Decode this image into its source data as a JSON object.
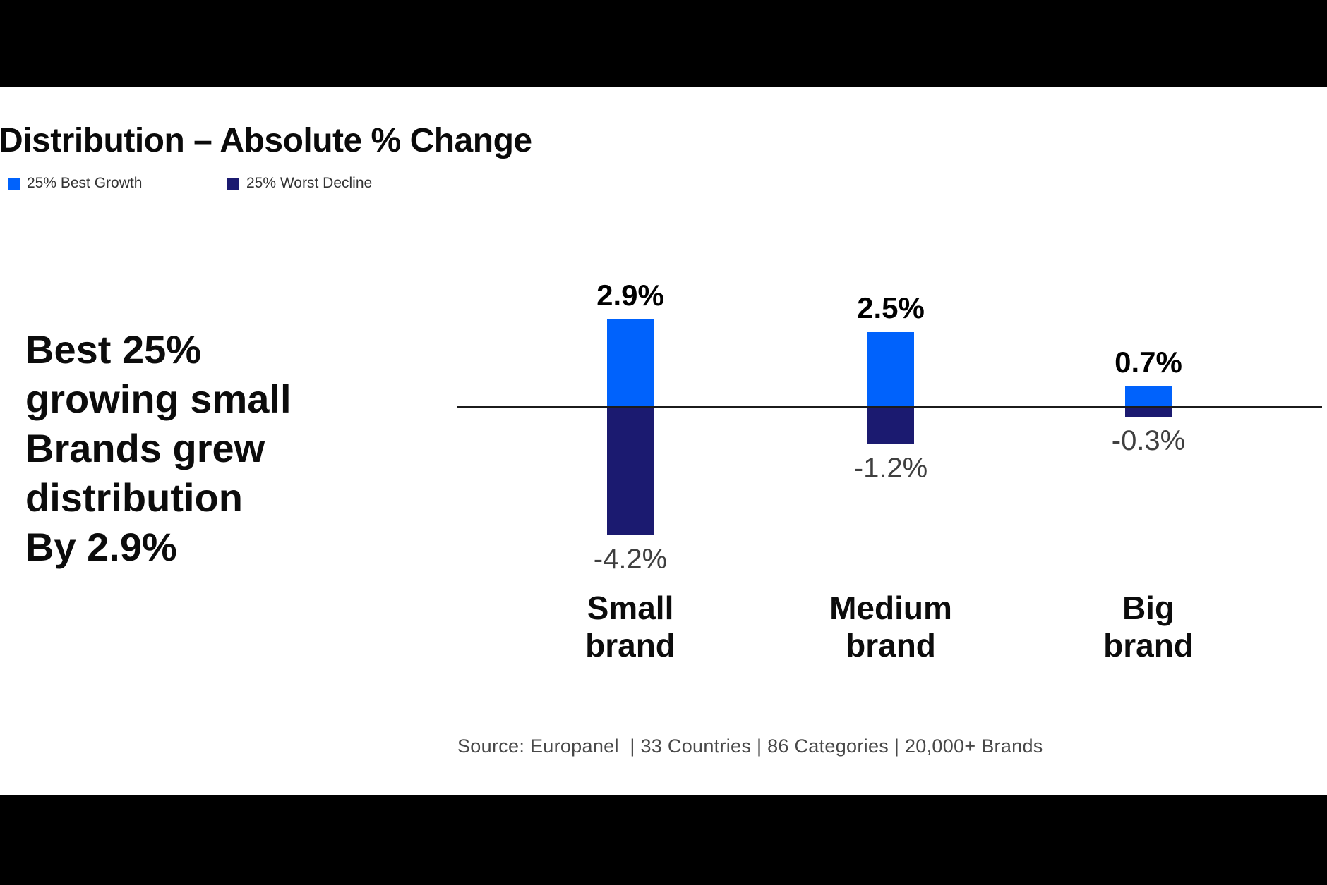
{
  "header": {
    "title": "Distribution – Absolute % Change"
  },
  "legend": [
    {
      "label": "25% Best Growth",
      "color": "#0062fc"
    },
    {
      "label": "25% Worst Decline",
      "color": "#1b1a70"
    }
  ],
  "callout": {
    "text": "Best 25%\ngrowing small\nBrands grew\ndistribution\nBy 2.9%"
  },
  "source": {
    "text": "Source: Europanel  | 33 Countries | 86 Categories | 20,000+ Brands"
  },
  "chart_data": {
    "type": "bar",
    "title": "Distribution – Absolute % Change",
    "categories": [
      "Small brand",
      "Medium brand",
      "Big brand"
    ],
    "categories_display": [
      "Small\nbrand",
      "Medium\nbrand",
      "Big\nbrand"
    ],
    "series": [
      {
        "name": "25% Best Growth",
        "color": "#0062fc",
        "values": [
          2.9,
          2.5,
          0.7
        ],
        "labels": [
          "2.9%",
          "2.5%",
          "0.7%"
        ]
      },
      {
        "name": "25% Worst Decline",
        "color": "#1b1a70",
        "values": [
          -4.2,
          -1.2,
          -0.3
        ],
        "labels": [
          "-4.2%",
          "-1.2%",
          "-0.3%"
        ]
      }
    ],
    "xlabel": "",
    "ylabel": "",
    "ylim": [
      -5,
      3.5
    ],
    "baseline": 0,
    "grid": false,
    "legend_position": "top-left"
  }
}
